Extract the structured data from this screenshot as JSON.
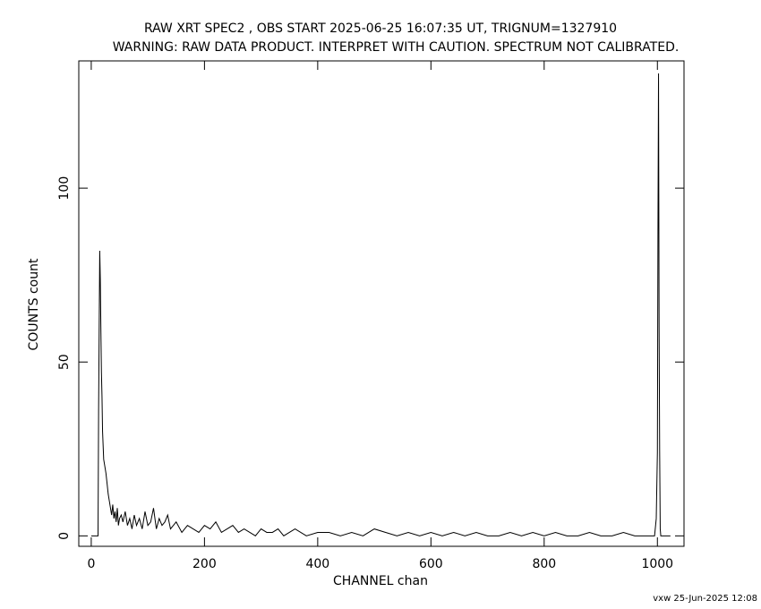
{
  "chart_data": {
    "type": "line",
    "title": "RAW XRT SPEC2 , OBS START 2025-06-25 16:07:35 UT, TRIGNUM=1327910",
    "subtitle": "WARNING: RAW DATA PRODUCT. INTERPRET WITH CAUTION. SPECTRUM NOT CALIBRATED.",
    "x_label": "CHANNEL  chan",
    "y_label": "COUNTS  count",
    "footnote": "vxw 25-Jun-2025 12:08",
    "color": "#000000",
    "xlim": [
      -22,
      1047
    ],
    "ylim": [
      -3,
      136.6
    ],
    "xticks": [
      0,
      200,
      400,
      600,
      800,
      1000
    ],
    "yticks": [
      0,
      50,
      100
    ],
    "x": [
      0,
      12,
      13,
      15,
      16,
      17,
      18,
      19,
      20,
      22,
      24,
      26,
      28,
      30,
      32,
      34,
      36,
      38,
      40,
      42,
      44,
      46,
      48,
      50,
      53,
      56,
      60,
      64,
      68,
      72,
      76,
      80,
      85,
      90,
      95,
      100,
      105,
      110,
      115,
      120,
      125,
      130,
      135,
      140,
      145,
      150,
      160,
      170,
      180,
      190,
      200,
      210,
      220,
      230,
      240,
      250,
      260,
      270,
      280,
      290,
      300,
      310,
      320,
      330,
      340,
      350,
      360,
      380,
      400,
      420,
      440,
      460,
      480,
      500,
      520,
      540,
      560,
      580,
      600,
      620,
      640,
      660,
      680,
      700,
      720,
      740,
      760,
      780,
      800,
      820,
      840,
      860,
      880,
      900,
      920,
      940,
      960,
      980,
      990,
      995,
      998,
      1000,
      1001,
      1002,
      1003,
      1004,
      1005,
      1006,
      1023
    ],
    "values": [
      0,
      0,
      36,
      82,
      74,
      60,
      47,
      40,
      30,
      22,
      20,
      18,
      15,
      12,
      10,
      8,
      6,
      9,
      5,
      7,
      4,
      8,
      3,
      5,
      6,
      4,
      7,
      3,
      5,
      2,
      6,
      3,
      5,
      2,
      7,
      3,
      4,
      8,
      2,
      5,
      3,
      4,
      6,
      2,
      3,
      4,
      1,
      3,
      2,
      1,
      3,
      2,
      4,
      1,
      2,
      3,
      1,
      2,
      1,
      0,
      2,
      1,
      1,
      2,
      0,
      1,
      2,
      0,
      1,
      1,
      0,
      1,
      0,
      2,
      1,
      0,
      1,
      0,
      1,
      0,
      1,
      0,
      1,
      0,
      0,
      1,
      0,
      1,
      0,
      1,
      0,
      0,
      1,
      0,
      0,
      1,
      0,
      0,
      0,
      0,
      5,
      24,
      88,
      133,
      60,
      24,
      2,
      0,
      0
    ]
  }
}
